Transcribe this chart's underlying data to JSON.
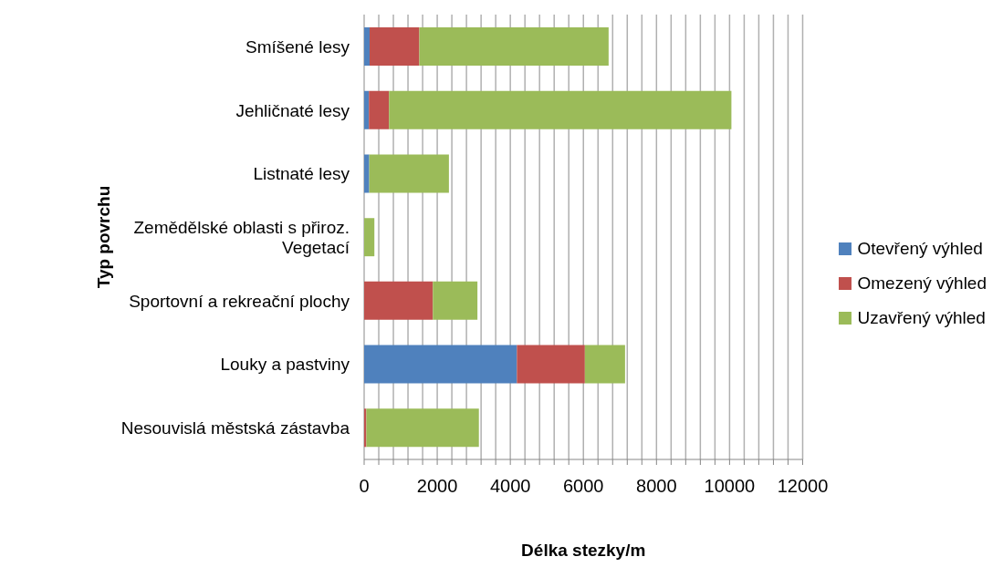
{
  "chart_data": {
    "type": "bar",
    "orientation": "horizontal",
    "stacked": true,
    "ylabel": "Typ povrchu",
    "xlabel": "Délka stezky/m",
    "categories": [
      "Smíšené lesy",
      "Jehličnaté lesy",
      "Listnaté lesy",
      "Zemědělské oblasti s přiroz. Vegetací",
      "Sportovní a rekreační plochy",
      "Louky a pastviny",
      "Nesouvislá městská zástavba"
    ],
    "series": [
      {
        "name": "Otevřený výhled",
        "color": "#4f81bd",
        "values": [
          150,
          130,
          140,
          0,
          0,
          4180,
          0
        ]
      },
      {
        "name": "Omezený výhled",
        "color": "#c0504d",
        "values": [
          1360,
          550,
          0,
          0,
          1880,
          1860,
          60
        ]
      },
      {
        "name": "Uzavřený výhled",
        "color": "#9bbb59",
        "values": [
          5180,
          9370,
          2180,
          280,
          1220,
          1100,
          3080
        ]
      }
    ],
    "xlim": [
      0,
      12000
    ],
    "xticks": [
      0,
      {
        "value": 400,
        "label": null
      },
      {
        "value": 800,
        "label": null
      },
      {
        "value": 1200,
        "label": null
      },
      {
        "value": 1600,
        "label": null
      },
      2000,
      {
        "value": 2400,
        "label": null
      },
      {
        "value": 2800,
        "label": null
      },
      {
        "value": 3200,
        "label": null
      },
      {
        "value": 3600,
        "label": null
      },
      4000,
      {
        "value": 4400,
        "label": null
      },
      {
        "value": 4800,
        "label": null
      },
      {
        "value": 5200,
        "label": null
      },
      {
        "value": 5600,
        "label": null
      },
      6000,
      {
        "value": 6400,
        "label": null
      },
      {
        "value": 6800,
        "label": null
      },
      {
        "value": 7200,
        "label": null
      },
      {
        "value": 7600,
        "label": null
      },
      8000,
      {
        "value": 8400,
        "label": null
      },
      {
        "value": 8800,
        "label": null
      },
      {
        "value": 9200,
        "label": null
      },
      {
        "value": 9600,
        "label": null
      },
      10000,
      {
        "value": 10400,
        "label": null
      },
      {
        "value": 10800,
        "label": null
      },
      {
        "value": 11200,
        "label": null
      },
      {
        "value": 11600,
        "label": null
      },
      12000
    ],
    "grid": "x",
    "legend": "right"
  }
}
